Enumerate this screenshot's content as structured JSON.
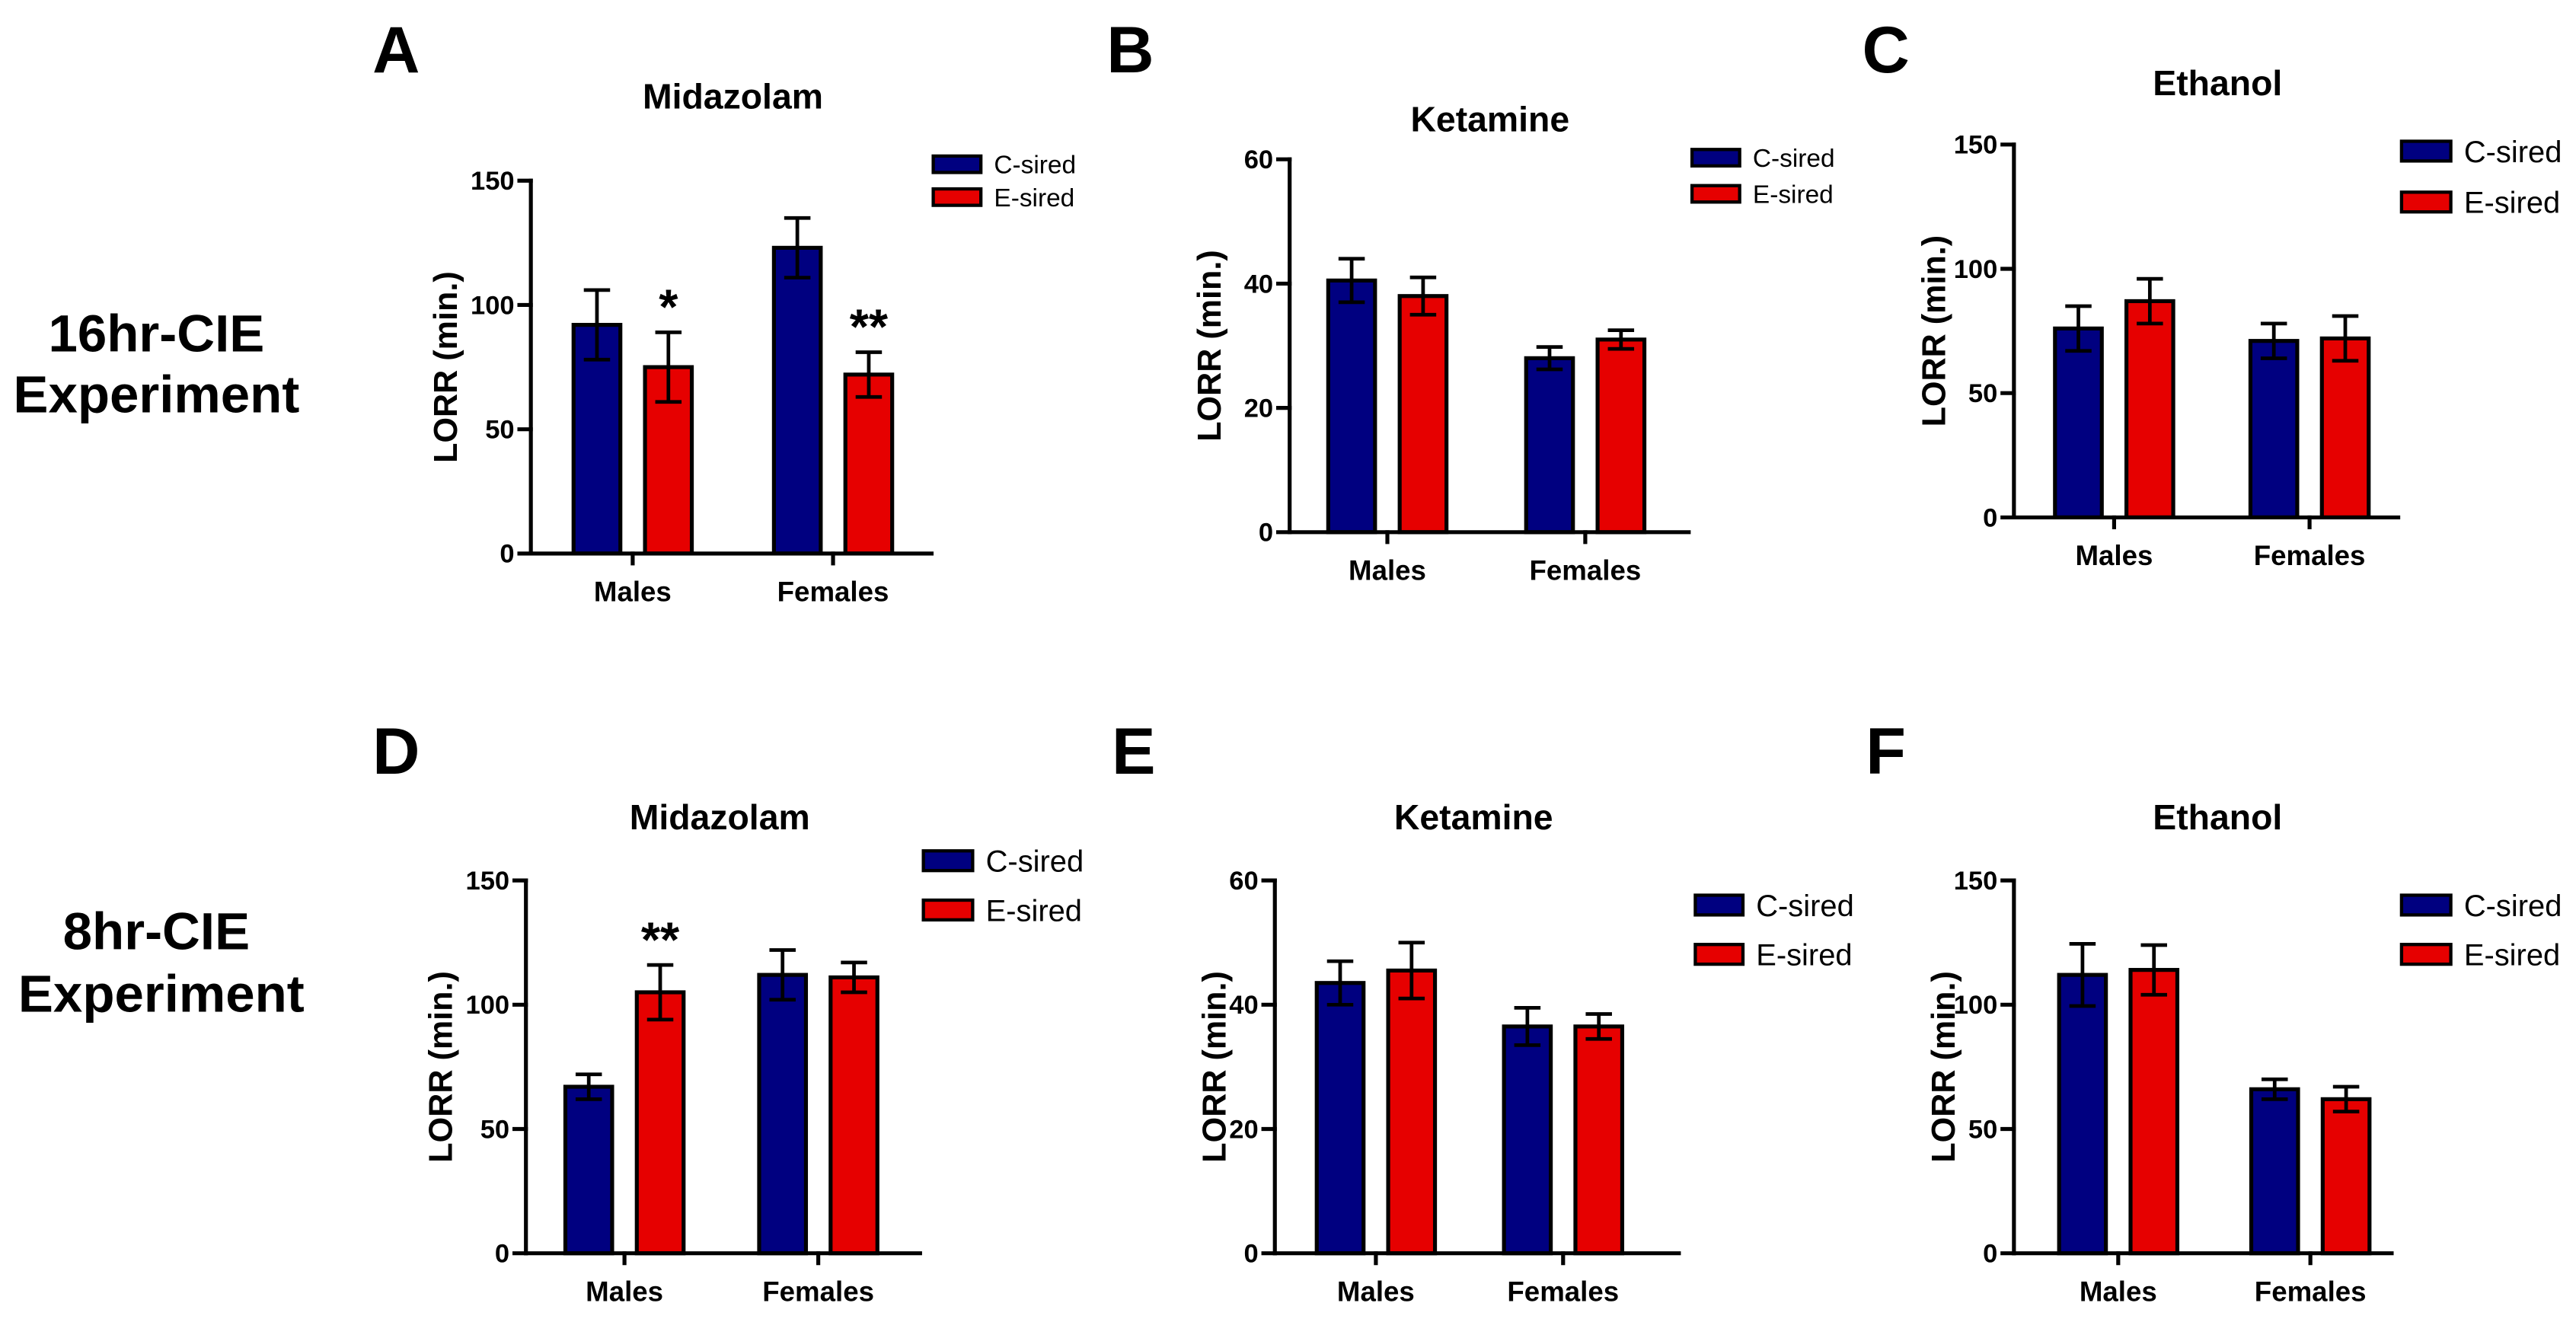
{
  "row_labels": [
    {
      "line1": "16hr-CIE",
      "line2": "Experiment"
    },
    {
      "line1": "8hr-CIE",
      "line2": "Experiment"
    }
  ],
  "chart_data": [
    {
      "panel": "A",
      "type": "bar",
      "title": "Midazolam",
      "xlabel": "",
      "ylabel": "LORR (min.)",
      "categories": [
        "Males",
        "Females"
      ],
      "ylim": [
        0,
        150
      ],
      "yticks": [
        0,
        50,
        100,
        150
      ],
      "series": [
        {
          "name": "C-sired",
          "color": "#000080",
          "values": [
            92,
            123
          ],
          "errors": [
            14,
            12
          ]
        },
        {
          "name": "E-sired",
          "color": "#e60000",
          "values": [
            75,
            72
          ],
          "errors": [
            14,
            9
          ]
        }
      ],
      "annotations": [
        {
          "series": 1,
          "category": 0,
          "text": "*"
        },
        {
          "series": 1,
          "category": 1,
          "text": "**"
        }
      ]
    },
    {
      "panel": "B",
      "type": "bar",
      "title": "Ketamine",
      "xlabel": "",
      "ylabel": "LORR (min.)",
      "categories": [
        "Males",
        "Females"
      ],
      "ylim": [
        0,
        60
      ],
      "yticks": [
        0,
        20,
        40,
        60
      ],
      "series": [
        {
          "name": "C-sired",
          "color": "#000080",
          "values": [
            40.5,
            28
          ],
          "errors": [
            3.5,
            1.8
          ]
        },
        {
          "name": "E-sired",
          "color": "#e60000",
          "values": [
            38,
            31
          ],
          "errors": [
            3,
            1.5
          ]
        }
      ],
      "annotations": []
    },
    {
      "panel": "C",
      "type": "bar",
      "title": "Ethanol",
      "xlabel": "",
      "ylabel": "LORR (min.)",
      "categories": [
        "Males",
        "Females"
      ],
      "ylim": [
        0,
        150
      ],
      "yticks": [
        0,
        50,
        100,
        150
      ],
      "series": [
        {
          "name": "C-sired",
          "color": "#000080",
          "values": [
            76,
            71
          ],
          "errors": [
            9,
            7
          ]
        },
        {
          "name": "E-sired",
          "color": "#e60000",
          "values": [
            87,
            72
          ],
          "errors": [
            9,
            9
          ]
        }
      ],
      "annotations": []
    },
    {
      "panel": "D",
      "type": "bar",
      "title": "Midazolam",
      "xlabel": "",
      "ylabel": "LORR (min.)",
      "categories": [
        "Males",
        "Females"
      ],
      "ylim": [
        0,
        150
      ],
      "yticks": [
        0,
        50,
        100,
        150
      ],
      "series": [
        {
          "name": "C-sired",
          "color": "#000080",
          "values": [
            67,
            112
          ],
          "errors": [
            5,
            10
          ]
        },
        {
          "name": "E-sired",
          "color": "#e60000",
          "values": [
            105,
            111
          ],
          "errors": [
            11,
            6
          ]
        }
      ],
      "annotations": [
        {
          "series": 1,
          "category": 0,
          "text": "**"
        }
      ]
    },
    {
      "panel": "E",
      "type": "bar",
      "title": "Ketamine",
      "xlabel": "",
      "ylabel": "LORR (min.)",
      "categories": [
        "Males",
        "Females"
      ],
      "ylim": [
        0,
        60
      ],
      "yticks": [
        0,
        20,
        40,
        60
      ],
      "series": [
        {
          "name": "C-sired",
          "color": "#000080",
          "values": [
            43.5,
            36.5
          ],
          "errors": [
            3.5,
            3
          ]
        },
        {
          "name": "E-sired",
          "color": "#e60000",
          "values": [
            45.5,
            36.5
          ],
          "errors": [
            4.5,
            2
          ]
        }
      ],
      "annotations": []
    },
    {
      "panel": "F",
      "type": "bar",
      "title": "Ethanol",
      "xlabel": "",
      "ylabel": "LORR (min.)",
      "categories": [
        "Males",
        "Females"
      ],
      "ylim": [
        0,
        150
      ],
      "yticks": [
        0,
        50,
        100,
        150
      ],
      "series": [
        {
          "name": "C-sired",
          "color": "#000080",
          "values": [
            112,
            66
          ],
          "errors": [
            12.5,
            4
          ]
        },
        {
          "name": "E-sired",
          "color": "#e60000",
          "values": [
            114,
            62
          ],
          "errors": [
            10,
            5
          ]
        }
      ],
      "annotations": []
    }
  ]
}
